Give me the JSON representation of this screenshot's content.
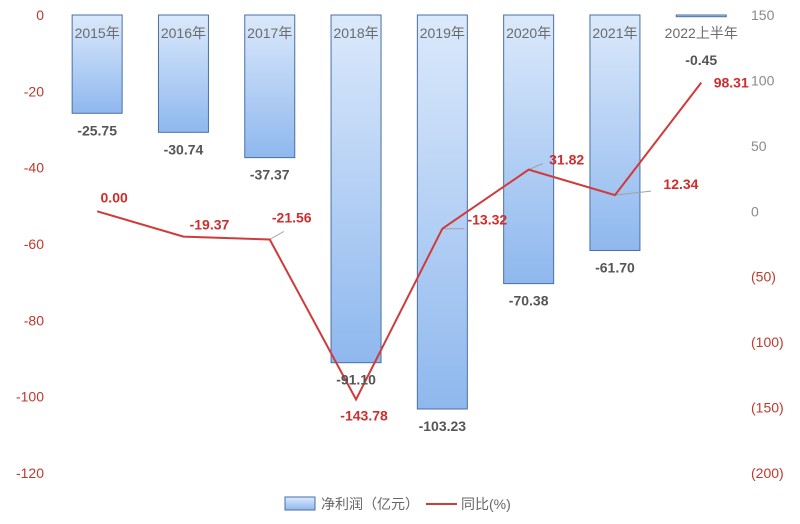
{
  "chart_data": {
    "type": "bar",
    "categories": [
      "2015年",
      "2016年",
      "2017年",
      "2018年",
      "2019年",
      "2020年",
      "2021年",
      "2022上半年"
    ],
    "series": [
      {
        "name": "净利润（亿元）",
        "type": "bar",
        "axis": "left",
        "values": [
          -25.75,
          -30.74,
          -37.37,
          -91.1,
          -103.23,
          -70.38,
          -61.7,
          -0.45
        ],
        "labels": [
          "-25.75",
          "-30.74",
          "-37.37",
          "-91.10",
          "-103.23",
          "-70.38",
          "-61.70",
          "-0.45"
        ]
      },
      {
        "name": "同比(%)",
        "type": "line",
        "axis": "right",
        "values": [
          0.0,
          -19.37,
          -21.56,
          -143.78,
          -13.32,
          31.82,
          12.34,
          98.31
        ],
        "labels": [
          "0.00",
          "-19.37",
          "-21.56",
          "-143.78",
          "-13.32",
          "31.82",
          "12.34",
          "98.31"
        ]
      }
    ],
    "left_axis": {
      "ylim": [
        -120,
        0
      ],
      "ticks": [
        "0",
        "-20",
        "-40",
        "-60",
        "-80",
        "-100",
        "-120"
      ]
    },
    "right_axis": {
      "ylim": [
        -200,
        150
      ],
      "ticks": [
        "150",
        "100",
        "50",
        "0",
        "(50)",
        "(100)",
        "(150)",
        "(200)"
      ]
    },
    "legend_position": "bottom",
    "grid": false,
    "colors": {
      "bar_fill_top": "#dbe9fb",
      "bar_fill_bottom": "#8fb8ee",
      "bar_stroke": "#4a6fa5",
      "line": "#d13a3a",
      "leader": "#a0a0a0"
    }
  }
}
